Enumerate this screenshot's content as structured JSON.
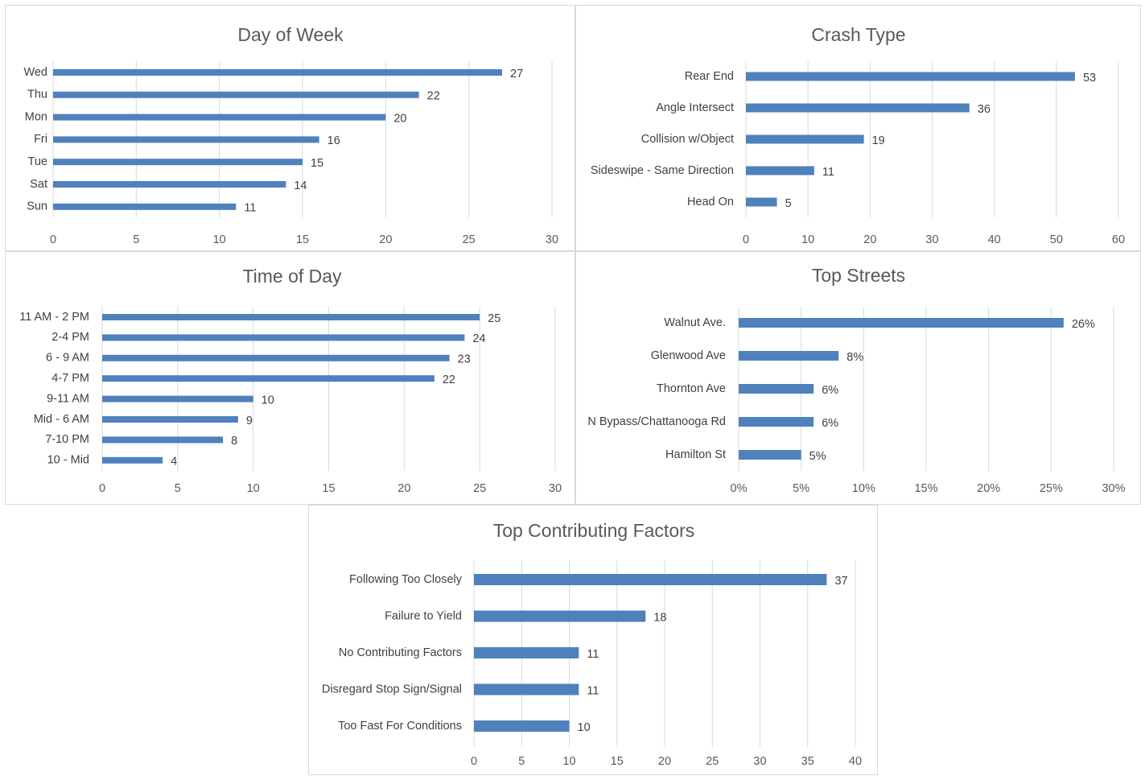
{
  "colors": {
    "bar": "#4f81bd",
    "grid": "#d9d9d9",
    "text": "#404040"
  },
  "chart_data": [
    {
      "id": "day-of-week",
      "type": "bar",
      "orientation": "horizontal",
      "title": "Day of Week",
      "categories": [
        "Wed",
        "Thu",
        "Mon",
        "Fri",
        "Tue",
        "Sat",
        "Sun"
      ],
      "values": [
        27,
        22,
        20,
        16,
        15,
        14,
        11
      ],
      "labels": [
        "27",
        "22",
        "20",
        "16",
        "15",
        "14",
        "11"
      ],
      "ticks": [
        "0",
        "5",
        "10",
        "15",
        "20",
        "25",
        "30"
      ],
      "xlim": [
        0,
        30
      ],
      "grid": true
    },
    {
      "id": "crash-type",
      "type": "bar",
      "orientation": "horizontal",
      "title": "Crash Type",
      "categories": [
        "Rear End",
        "Angle Intersect",
        "Collision w/Object",
        "Sideswipe - Same Direction",
        "Head On"
      ],
      "values": [
        53,
        36,
        19,
        11,
        5
      ],
      "labels": [
        "53",
        "36",
        "19",
        "11",
        "5"
      ],
      "ticks": [
        "0",
        "10",
        "20",
        "30",
        "40",
        "50",
        "60"
      ],
      "xlim": [
        0,
        60
      ],
      "grid": true
    },
    {
      "id": "time-of-day",
      "type": "bar",
      "orientation": "horizontal",
      "title": "Time of Day",
      "categories": [
        "11 AM - 2 PM",
        "2-4 PM",
        "6 - 9 AM",
        "4-7 PM",
        "9-11 AM",
        "Mid - 6 AM",
        "7-10 PM",
        "10 - Mid"
      ],
      "values": [
        25,
        24,
        23,
        22,
        10,
        9,
        8,
        4
      ],
      "labels": [
        "25",
        "24",
        "23",
        "22",
        "10",
        "9",
        "8",
        "4"
      ],
      "ticks": [
        "0",
        "5",
        "10",
        "15",
        "20",
        "25",
        "30"
      ],
      "xlim": [
        0,
        30
      ],
      "grid": true
    },
    {
      "id": "top-streets",
      "type": "bar",
      "orientation": "horizontal",
      "title": "Top Streets",
      "categories": [
        "Walnut Ave.",
        "Glenwood Ave",
        "Thornton Ave",
        "N Bypass/Chattanooga Rd",
        "Hamilton St"
      ],
      "values": [
        26,
        8,
        6,
        6,
        5
      ],
      "unit": "%",
      "labels": [
        "26%",
        "8%",
        "6%",
        "6%",
        "5%"
      ],
      "ticks": [
        "0%",
        "5%",
        "10%",
        "15%",
        "20%",
        "25%",
        "30%"
      ],
      "xlim": [
        0,
        30
      ],
      "grid": true
    },
    {
      "id": "top-contributing-factors",
      "type": "bar",
      "orientation": "horizontal",
      "title": "Top Contributing Factors",
      "categories": [
        "Following Too Closely",
        "Failure to Yield",
        "No Contributing Factors",
        "Disregard Stop Sign/Signal",
        "Too Fast For Conditions"
      ],
      "values": [
        37,
        18,
        11,
        11,
        10
      ],
      "labels": [
        "37",
        "18",
        "11",
        "11",
        "10"
      ],
      "ticks": [
        "0",
        "5",
        "10",
        "15",
        "20",
        "25",
        "30",
        "35",
        "40"
      ],
      "xlim": [
        0,
        40
      ],
      "grid": true
    }
  ]
}
